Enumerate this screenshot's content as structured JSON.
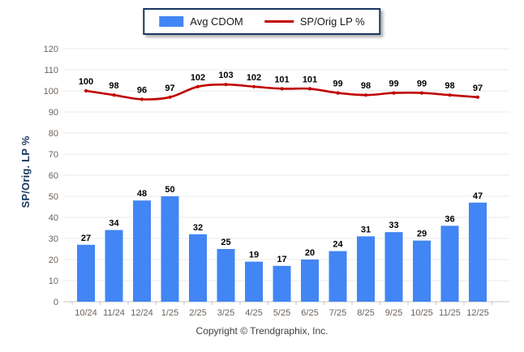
{
  "chart_data": {
    "type": "combo",
    "title": "",
    "categories": [
      "10/24",
      "11/24",
      "12/24",
      "1/25",
      "2/25",
      "3/25",
      "4/25",
      "5/25",
      "6/25",
      "7/25",
      "8/25",
      "9/25",
      "10/25",
      "11/25",
      "12/25"
    ],
    "series": [
      {
        "name": "Avg CDOM",
        "type": "bar",
        "color": "#4285F4",
        "values": [
          27,
          34,
          48,
          50,
          32,
          25,
          19,
          17,
          20,
          24,
          31,
          33,
          29,
          36,
          47
        ]
      },
      {
        "name": "SP/Orig LP %",
        "type": "line",
        "color": "#C00000",
        "values": [
          100,
          98,
          96,
          97,
          102,
          103,
          102,
          101,
          101,
          99,
          98,
          99,
          99,
          98,
          97
        ]
      }
    ],
    "xlabel": "",
    "ylabel": "SP/Orig. LP %",
    "ylim": [
      0,
      120
    ],
    "ytick_step": 10,
    "grid": true,
    "legend_position": "top-center",
    "data_labels": true
  },
  "colors": {
    "bar": "#4285F4",
    "line": "#C00000",
    "grid": "#E9E9E9",
    "axis_line": "#C6C6C6",
    "tick_text": "#6E6259",
    "value_label": "#000000",
    "axis_title": "#17375E",
    "legend_border": "#17375E"
  },
  "footer": {
    "copyright": "Copyright © Trendgraphix, Inc."
  }
}
